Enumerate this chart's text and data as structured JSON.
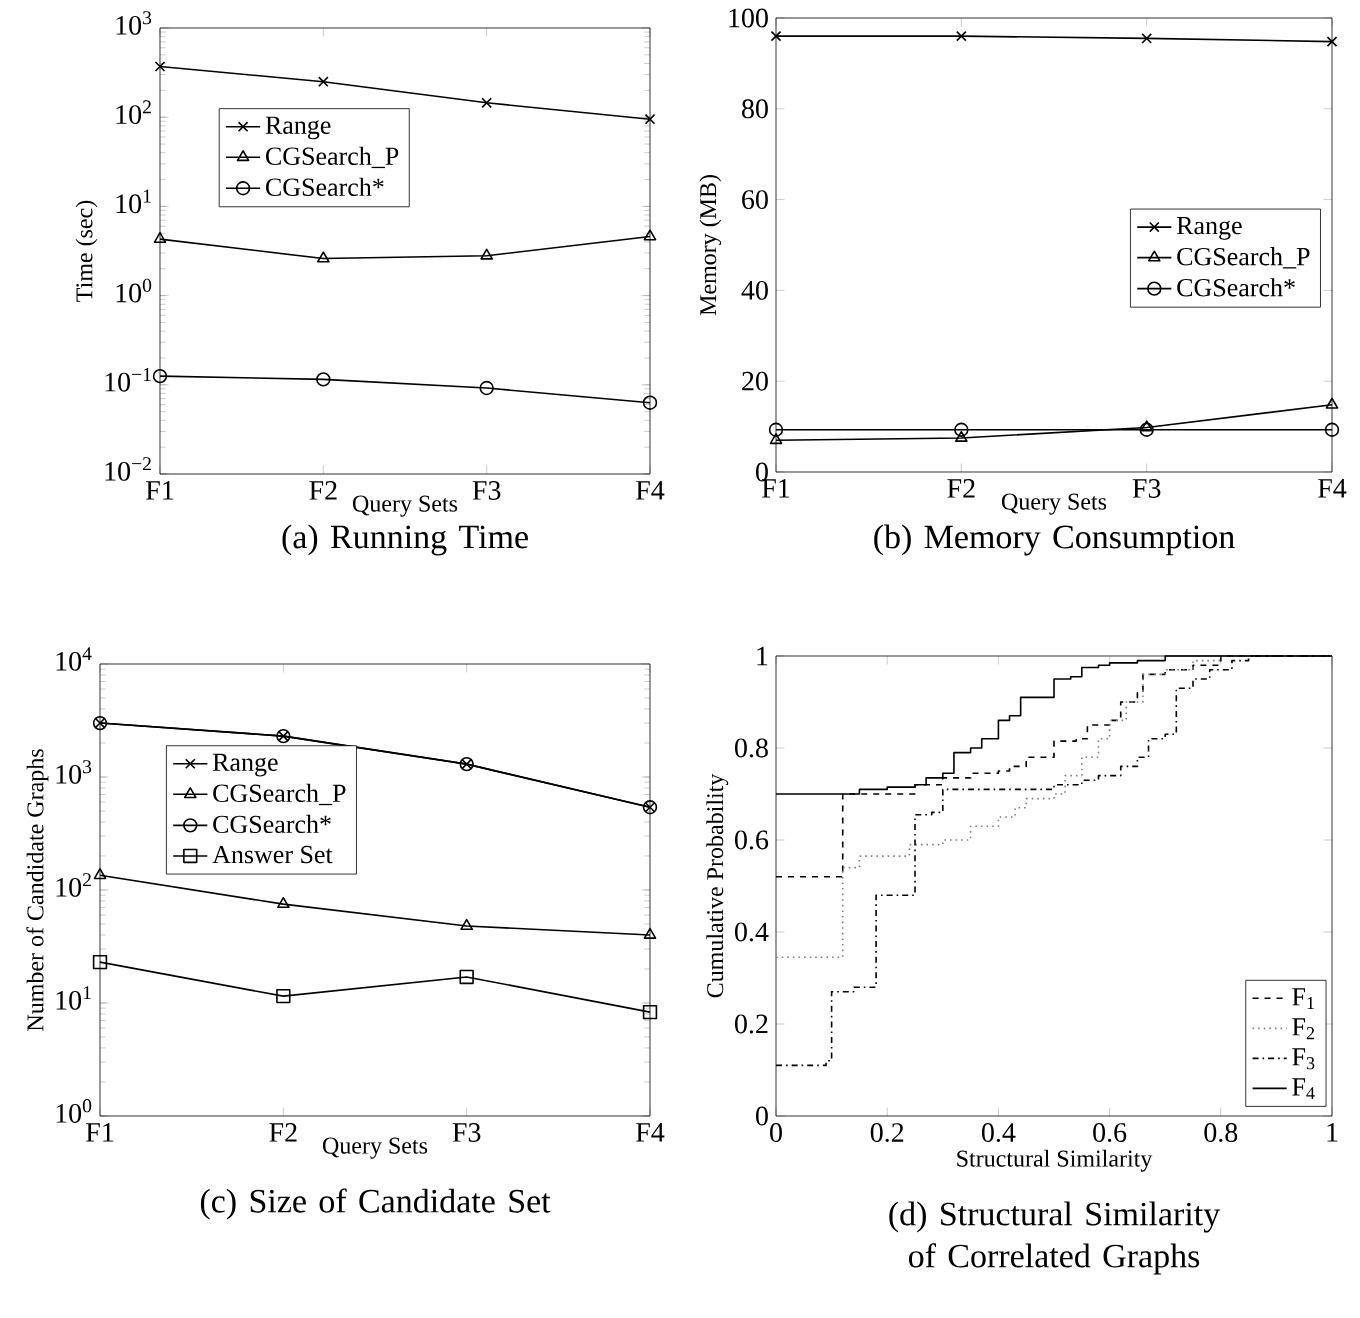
{
  "chart_data": [
    {
      "type": "line",
      "title": "(a) Running Time",
      "xlabel": "Query Sets",
      "ylabel": "Time (sec)",
      "categories": [
        "F1",
        "F2",
        "F3",
        "F4"
      ],
      "log": "y",
      "ylim": [
        0.01,
        1000
      ],
      "yticks": [
        {
          "value": 0.01,
          "label": "10$^{−2}$"
        },
        {
          "value": 0.1,
          "label": "10$^{−1}$"
        },
        {
          "value": 1,
          "label": "10$^{0}$"
        },
        {
          "value": 10,
          "label": "10$^{1}$"
        },
        {
          "value": 100,
          "label": "10$^{2}$"
        },
        {
          "value": 1000,
          "label": "10$^{3}$"
        }
      ],
      "legend": "top left",
      "series": [
        {
          "name": "Range",
          "color": "#000000",
          "marker": "cross",
          "values": [
            370,
            250,
            145,
            95
          ]
        },
        {
          "name": "CGSearch_P",
          "color": "#000000",
          "marker": "triangle",
          "values": [
            4.3,
            2.6,
            2.8,
            4.6
          ]
        },
        {
          "name": "CGSearch*",
          "color": "#000000",
          "marker": "circle",
          "values": [
            0.125,
            0.115,
            0.092,
            0.063
          ]
        }
      ]
    },
    {
      "type": "line",
      "title": "(b) Memory Consumption",
      "xlabel": "Query Sets",
      "ylabel": "Memory (MB)",
      "categories": [
        "F1",
        "F2",
        "F3",
        "F4"
      ],
      "ylim": [
        0,
        100
      ],
      "yticks": [
        0,
        20,
        40,
        60,
        80,
        100
      ],
      "legend": "right",
      "series": [
        {
          "name": "Range",
          "color": "#000000",
          "marker": "cross",
          "values": [
            96,
            96,
            95.5,
            94.8
          ]
        },
        {
          "name": "CGSearch_P",
          "color": "#000000",
          "marker": "triangle",
          "values": [
            7,
            7.5,
            9.8,
            14.8
          ]
        },
        {
          "name": "CGSearch*",
          "color": "#000000",
          "marker": "circle",
          "values": [
            9.3,
            9.3,
            9.3,
            9.3
          ]
        }
      ]
    },
    {
      "type": "line",
      "title": "(c) Size of Candidate Set",
      "xlabel": "Query Sets",
      "ylabel": "Number of Candidate Graphs",
      "categories": [
        "F1",
        "F2",
        "F3",
        "F4"
      ],
      "log": "y",
      "ylim": [
        1,
        10000
      ],
      "yticks": [
        {
          "value": 1,
          "label": "10$^{0}$"
        },
        {
          "value": 10,
          "label": "10$^{1}$"
        },
        {
          "value": 100,
          "label": "10$^{2}$"
        },
        {
          "value": 1000,
          "label": "10$^{3}$"
        },
        {
          "value": 10000,
          "label": "10$^{4}$"
        }
      ],
      "legend": "top left",
      "series": [
        {
          "name": "Range",
          "color": "#000000",
          "marker": "cross",
          "values": [
            3000,
            2300,
            1300,
            540
          ]
        },
        {
          "name": "CGSearch_P",
          "color": "#000000",
          "marker": "triangle",
          "values": [
            135,
            75,
            48,
            40
          ]
        },
        {
          "name": "CGSearch*",
          "color": "#000000",
          "marker": "circle",
          "values": [
            3000,
            2300,
            1300,
            540
          ]
        },
        {
          "name": "Answer Set",
          "color": "#000000",
          "marker": "square",
          "values": [
            23,
            11.5,
            17,
            8.3
          ]
        }
      ]
    },
    {
      "type": "step",
      "title": "(d) Structural Similarity of Correlated Graphs",
      "xlabel": "Structural Similarity",
      "ylabel": "Cumulative Probability",
      "xlim": [
        0,
        1
      ],
      "ylim": [
        0,
        1
      ],
      "xticks": [
        0,
        0.2,
        0.4,
        0.6,
        0.8,
        1
      ],
      "yticks": [
        0,
        0.2,
        0.4,
        0.6,
        0.8,
        1
      ],
      "legend": "bottom right",
      "series": [
        {
          "name": "F$_{1}$",
          "color": "#000000",
          "line_style": "dashed",
          "x": [
            0,
            0.1,
            0.12,
            0.2,
            0.25,
            0.3,
            0.35,
            0.4,
            0.42,
            0.45,
            0.5,
            0.54,
            0.56,
            0.6,
            0.62,
            0.65,
            0.66,
            0.7,
            0.75,
            0.8,
            1
          ],
          "values": [
            0.52,
            0.52,
            0.7,
            0.7,
            0.72,
            0.735,
            0.745,
            0.75,
            0.76,
            0.78,
            0.815,
            0.82,
            0.85,
            0.86,
            0.9,
            0.92,
            0.96,
            0.97,
            0.98,
            1,
            1
          ]
        },
        {
          "name": "F$_{2}$",
          "color": "#808080",
          "line_style": "dotted",
          "x": [
            0,
            0.1,
            0.12,
            0.15,
            0.24,
            0.3,
            0.35,
            0.4,
            0.43,
            0.45,
            0.5,
            0.52,
            0.55,
            0.58,
            0.6,
            0.63,
            0.66,
            0.7,
            0.75,
            0.8,
            1
          ],
          "values": [
            0.345,
            0.345,
            0.54,
            0.565,
            0.59,
            0.6,
            0.63,
            0.65,
            0.67,
            0.69,
            0.7,
            0.74,
            0.78,
            0.82,
            0.86,
            0.9,
            0.96,
            0.97,
            0.99,
            1,
            1
          ]
        },
        {
          "name": "F$_{3}$",
          "color": "#000000",
          "line_style": "dashdot",
          "x": [
            0,
            0.09,
            0.1,
            0.14,
            0.18,
            0.25,
            0.28,
            0.3,
            0.45,
            0.5,
            0.55,
            0.58,
            0.62,
            0.65,
            0.67,
            0.7,
            0.72,
            0.75,
            0.78,
            0.82,
            0.85,
            1
          ],
          "values": [
            0.11,
            0.12,
            0.27,
            0.28,
            0.48,
            0.655,
            0.66,
            0.71,
            0.71,
            0.72,
            0.73,
            0.74,
            0.76,
            0.78,
            0.82,
            0.83,
            0.93,
            0.95,
            0.97,
            0.99,
            1,
            1
          ]
        },
        {
          "name": "F$_{4}$",
          "color": "#000000",
          "line_style": "solid",
          "x": [
            0,
            0.12,
            0.15,
            0.2,
            0.25,
            0.27,
            0.3,
            0.32,
            0.35,
            0.37,
            0.4,
            0.42,
            0.44,
            0.48,
            0.5,
            0.53,
            0.55,
            0.58,
            0.6,
            0.65,
            0.7,
            1
          ],
          "values": [
            0.7,
            0.7,
            0.71,
            0.715,
            0.72,
            0.735,
            0.745,
            0.79,
            0.8,
            0.82,
            0.86,
            0.87,
            0.91,
            0.91,
            0.95,
            0.955,
            0.975,
            0.98,
            0.985,
            0.99,
            1,
            1
          ]
        }
      ]
    }
  ]
}
